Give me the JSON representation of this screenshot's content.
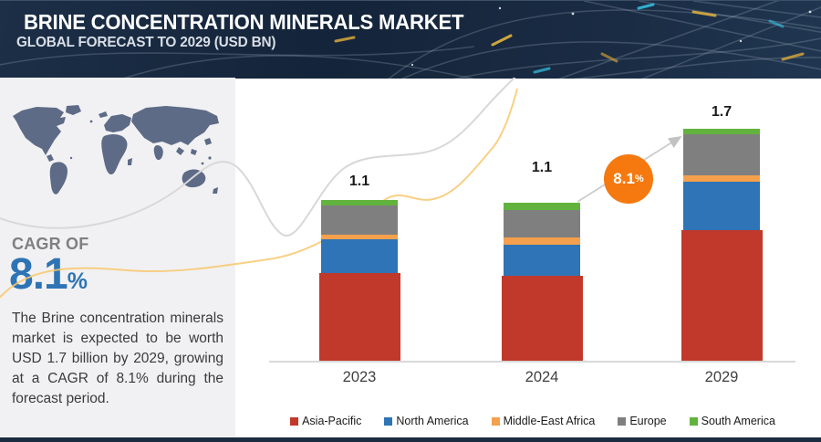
{
  "header": {
    "title": "BRINE CONCENTRATION MINERALS MARKET",
    "subtitle": "GLOBAL FORECAST TO 2029 (USD BN)"
  },
  "sidebar": {
    "cagr_label": "CAGR OF",
    "cagr_value": "8.1",
    "cagr_unit": "%",
    "description": "The Brine concentration minerals market is expected to be worth USD 1.7 billion by 2029, growing at a CAGR of 8.1% during the forecast period."
  },
  "growth_badge": {
    "value": "8.1",
    "unit": "%"
  },
  "colors": {
    "header_bg": "#16263c",
    "sidebar_bg": "#f1f1f3",
    "map_fill": "#5d6b86",
    "accent_blue": "#2e74b5",
    "badge_orange": "#f5790f",
    "axis_gray": "#d9d9d9",
    "wave_gray": "#d8d8d8",
    "wave_yellow": "#f8c86f"
  },
  "chart_data": {
    "type": "bar",
    "stacked": true,
    "title": "Brine Concentration Minerals Market, Global Forecast (USD BN)",
    "categories": [
      "2023",
      "2024",
      "2029"
    ],
    "totals": [
      1.1,
      1.1,
      1.7
    ],
    "total_labels": [
      "1.1",
      "1.1",
      "1.7"
    ],
    "series": [
      {
        "name": "Asia-Pacific",
        "color": "#c0392b",
        "values": [
          0.6,
          0.59,
          0.96
        ]
      },
      {
        "name": "North America",
        "color": "#2e74b6",
        "values": [
          0.23,
          0.22,
          0.35
        ]
      },
      {
        "name": "Middle-East Africa",
        "color": "#f5a04c",
        "values": [
          0.03,
          0.05,
          0.05
        ]
      },
      {
        "name": "Europe",
        "color": "#7f7f7f",
        "values": [
          0.2,
          0.19,
          0.3
        ]
      },
      {
        "name": "South America",
        "color": "#62b33e",
        "values": [
          0.04,
          0.05,
          0.04
        ]
      }
    ],
    "xlabel": "",
    "ylabel": "USD BN",
    "ylim": [
      0,
      1.8
    ],
    "grid": false,
    "legend_position": "bottom",
    "cagr_annotation": "8.1%"
  }
}
